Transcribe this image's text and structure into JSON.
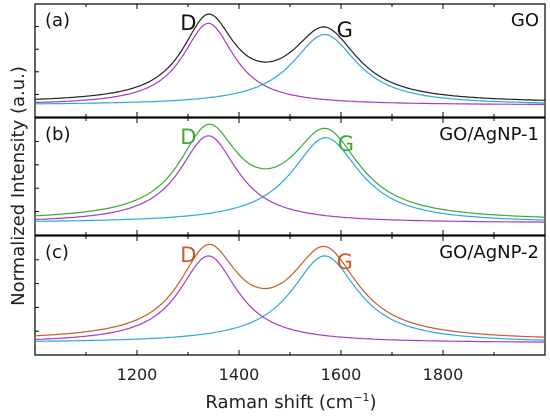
{
  "chart_data": {
    "type": "line",
    "xlabel": "Raman shift (cm",
    "xlabel_sup": "−1",
    "xlabel_close": ")",
    "ylabel": "Normalized Intensity (a.u.)",
    "xlim": [
      1000,
      2000
    ],
    "x_ticks": [
      1200,
      1400,
      1600,
      1800
    ],
    "x_tick_labels": [
      "1200",
      "1400",
      "1600",
      "1800"
    ],
    "colors": {
      "D_component": "#a23cc8",
      "G_component": "#2ea6e0",
      "axis": "#000000"
    },
    "panels": [
      {
        "label": "(a)",
        "sample": "GO",
        "peak_labels": {
          "D": "D",
          "G": "G"
        },
        "peak_label_color": "#111111",
        "sum_color": "#222222",
        "baseline": 0.02,
        "D": {
          "center": 1340,
          "hwhm": 62,
          "height": 0.88
        },
        "G": {
          "center": 1568,
          "hwhm": 78,
          "height": 0.76
        }
      },
      {
        "label": "(b)",
        "sample": "GO/AgNP-1",
        "peak_labels": {
          "D": "D",
          "G": "G"
        },
        "peak_label_color": "#3aaa35",
        "sum_color": "#3aaa35",
        "baseline": 0.02,
        "D": {
          "center": 1340,
          "hwhm": 70,
          "height": 0.9
        },
        "G": {
          "center": 1570,
          "hwhm": 82,
          "height": 0.88
        }
      },
      {
        "label": "(c)",
        "sample": "GO/AgNP-2",
        "peak_labels": {
          "D": "D",
          "G": "G"
        },
        "peak_label_color": "#c85a28",
        "sum_color": "#c85a28",
        "baseline": 0.02,
        "D": {
          "center": 1340,
          "hwhm": 70,
          "height": 0.88
        },
        "G": {
          "center": 1568,
          "hwhm": 80,
          "height": 0.88
        }
      }
    ]
  }
}
